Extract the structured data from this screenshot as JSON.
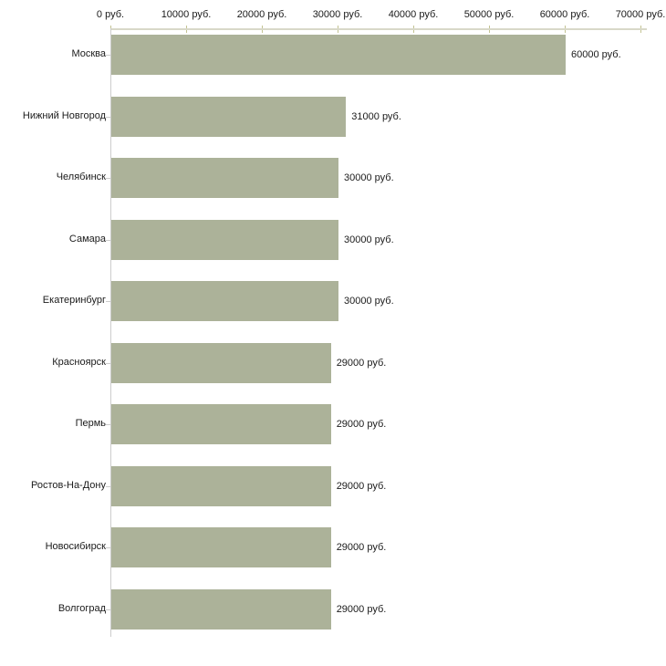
{
  "chart_data": {
    "type": "bar",
    "orientation": "horizontal",
    "title": "",
    "xlabel": "",
    "ylabel": "",
    "categories": [
      "Москва",
      "Нижний Новгород",
      "Челябинск",
      "Самара",
      "Екатеринбург",
      "Красноярск",
      "Пермь",
      "Ростов-На-Дону",
      "Новосибирск",
      "Волгоград"
    ],
    "values": [
      60000,
      31000,
      30000,
      30000,
      30000,
      29000,
      29000,
      29000,
      29000,
      29000
    ],
    "value_labels": [
      "60000 руб.",
      "31000 руб.",
      "30000 руб.",
      "30000 руб.",
      "30000 руб.",
      "29000 руб.",
      "29000 руб.",
      "29000 руб.",
      "29000 руб.",
      "29000 руб."
    ],
    "x_axis": {
      "position": "top",
      "tick_values": [
        0,
        10000,
        20000,
        30000,
        40000,
        50000,
        60000,
        70000
      ],
      "tick_labels": [
        "0 руб.",
        "10000 руб.",
        "20000 руб.",
        "30000 руб.",
        "40000 руб.",
        "50000 руб.",
        "60000 руб.",
        "70000 руб."
      ]
    },
    "xlim": [
      0,
      70000
    ],
    "grid": false,
    "legend": "none",
    "colors": {
      "bar": "#acb299",
      "axis_line": "#d8d8c8",
      "axis_tick": "#c3c392",
      "y_axis_line": "#cccccc",
      "category_tick": "#cccccc",
      "text": "#1a1a1a",
      "background": "#ffffff"
    }
  }
}
